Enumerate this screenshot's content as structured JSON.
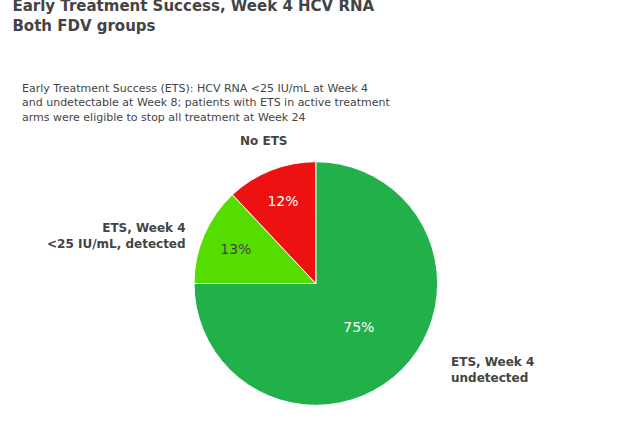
{
  "chart_data": {
    "type": "pie",
    "title": "Early Treatment Success, Week 4 HCV RNA\nBoth FDV groups",
    "subtitle": "Early Treatment Success (ETS): HCV RNA <25 IU/mL at Week 4\nand undetectable at Week 8; patients with ETS in active treatment\narms were eligible to stop all treatment at Week 24",
    "categories": [
      "ETS, Week 4\nundetected",
      "ETS, Week 4\n<25 IU/mL, detected",
      "No ETS"
    ],
    "values": [
      75,
      13,
      12
    ],
    "value_labels": [
      "75%",
      "13%",
      "12%"
    ],
    "colors": [
      "#22b04a",
      "#55dd00",
      "#ee1111"
    ],
    "data_labels": true
  }
}
